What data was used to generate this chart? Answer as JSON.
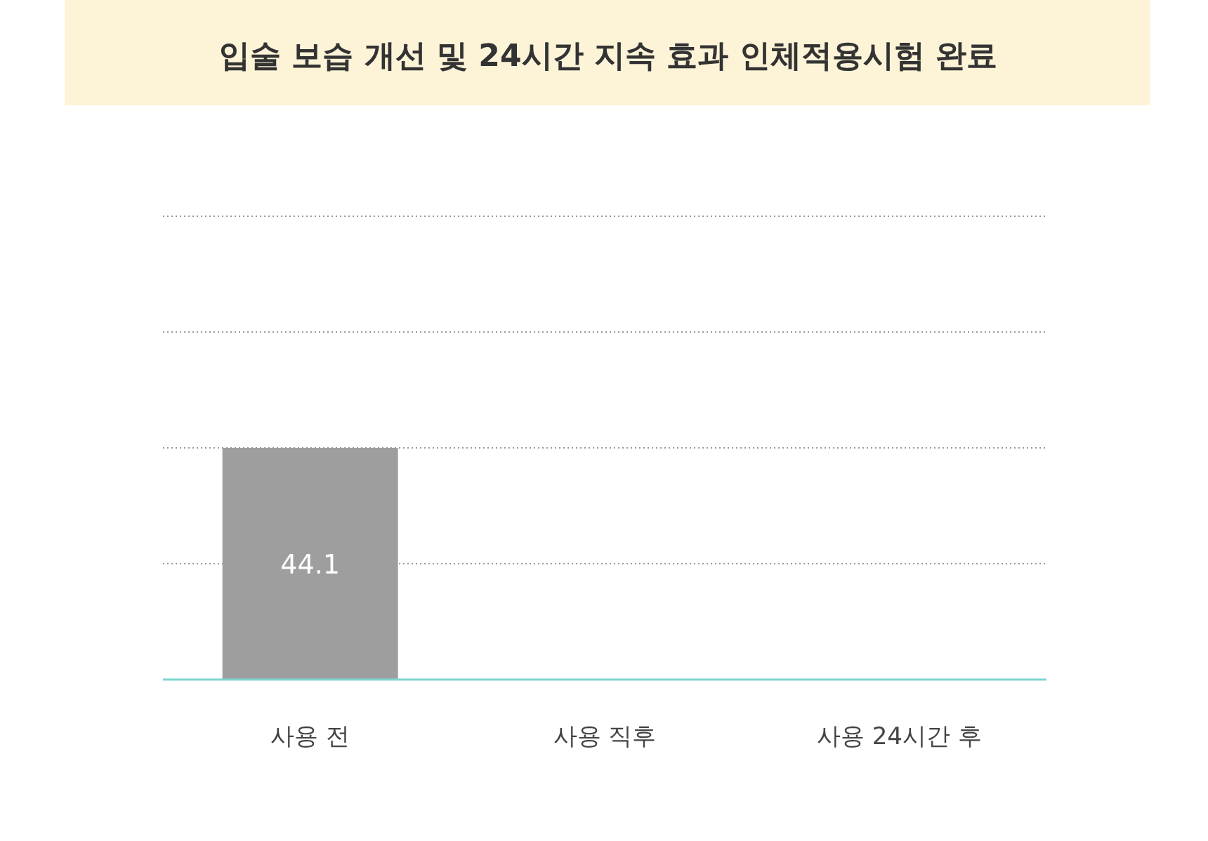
{
  "chart_data": {
    "type": "bar",
    "title": "입술 보습 개선 및 24시간 지속 효과 인체적용시험 완료",
    "categories": [
      "사용 전",
      "사용 직후",
      "사용 24시간 후"
    ],
    "values": [
      44.1,
      null,
      null
    ],
    "color": "#9e9e9e",
    "ylim": [
      0,
      88.2
    ],
    "yticks": [
      {
        "value": 22.05,
        "label": null
      },
      {
        "value": 44.1,
        "label": null
      },
      {
        "value": 66.15,
        "label": null
      },
      {
        "value": 88.2,
        "label": null
      }
    ],
    "grid": "y",
    "tick_labels": "x",
    "data_labels": true
  }
}
